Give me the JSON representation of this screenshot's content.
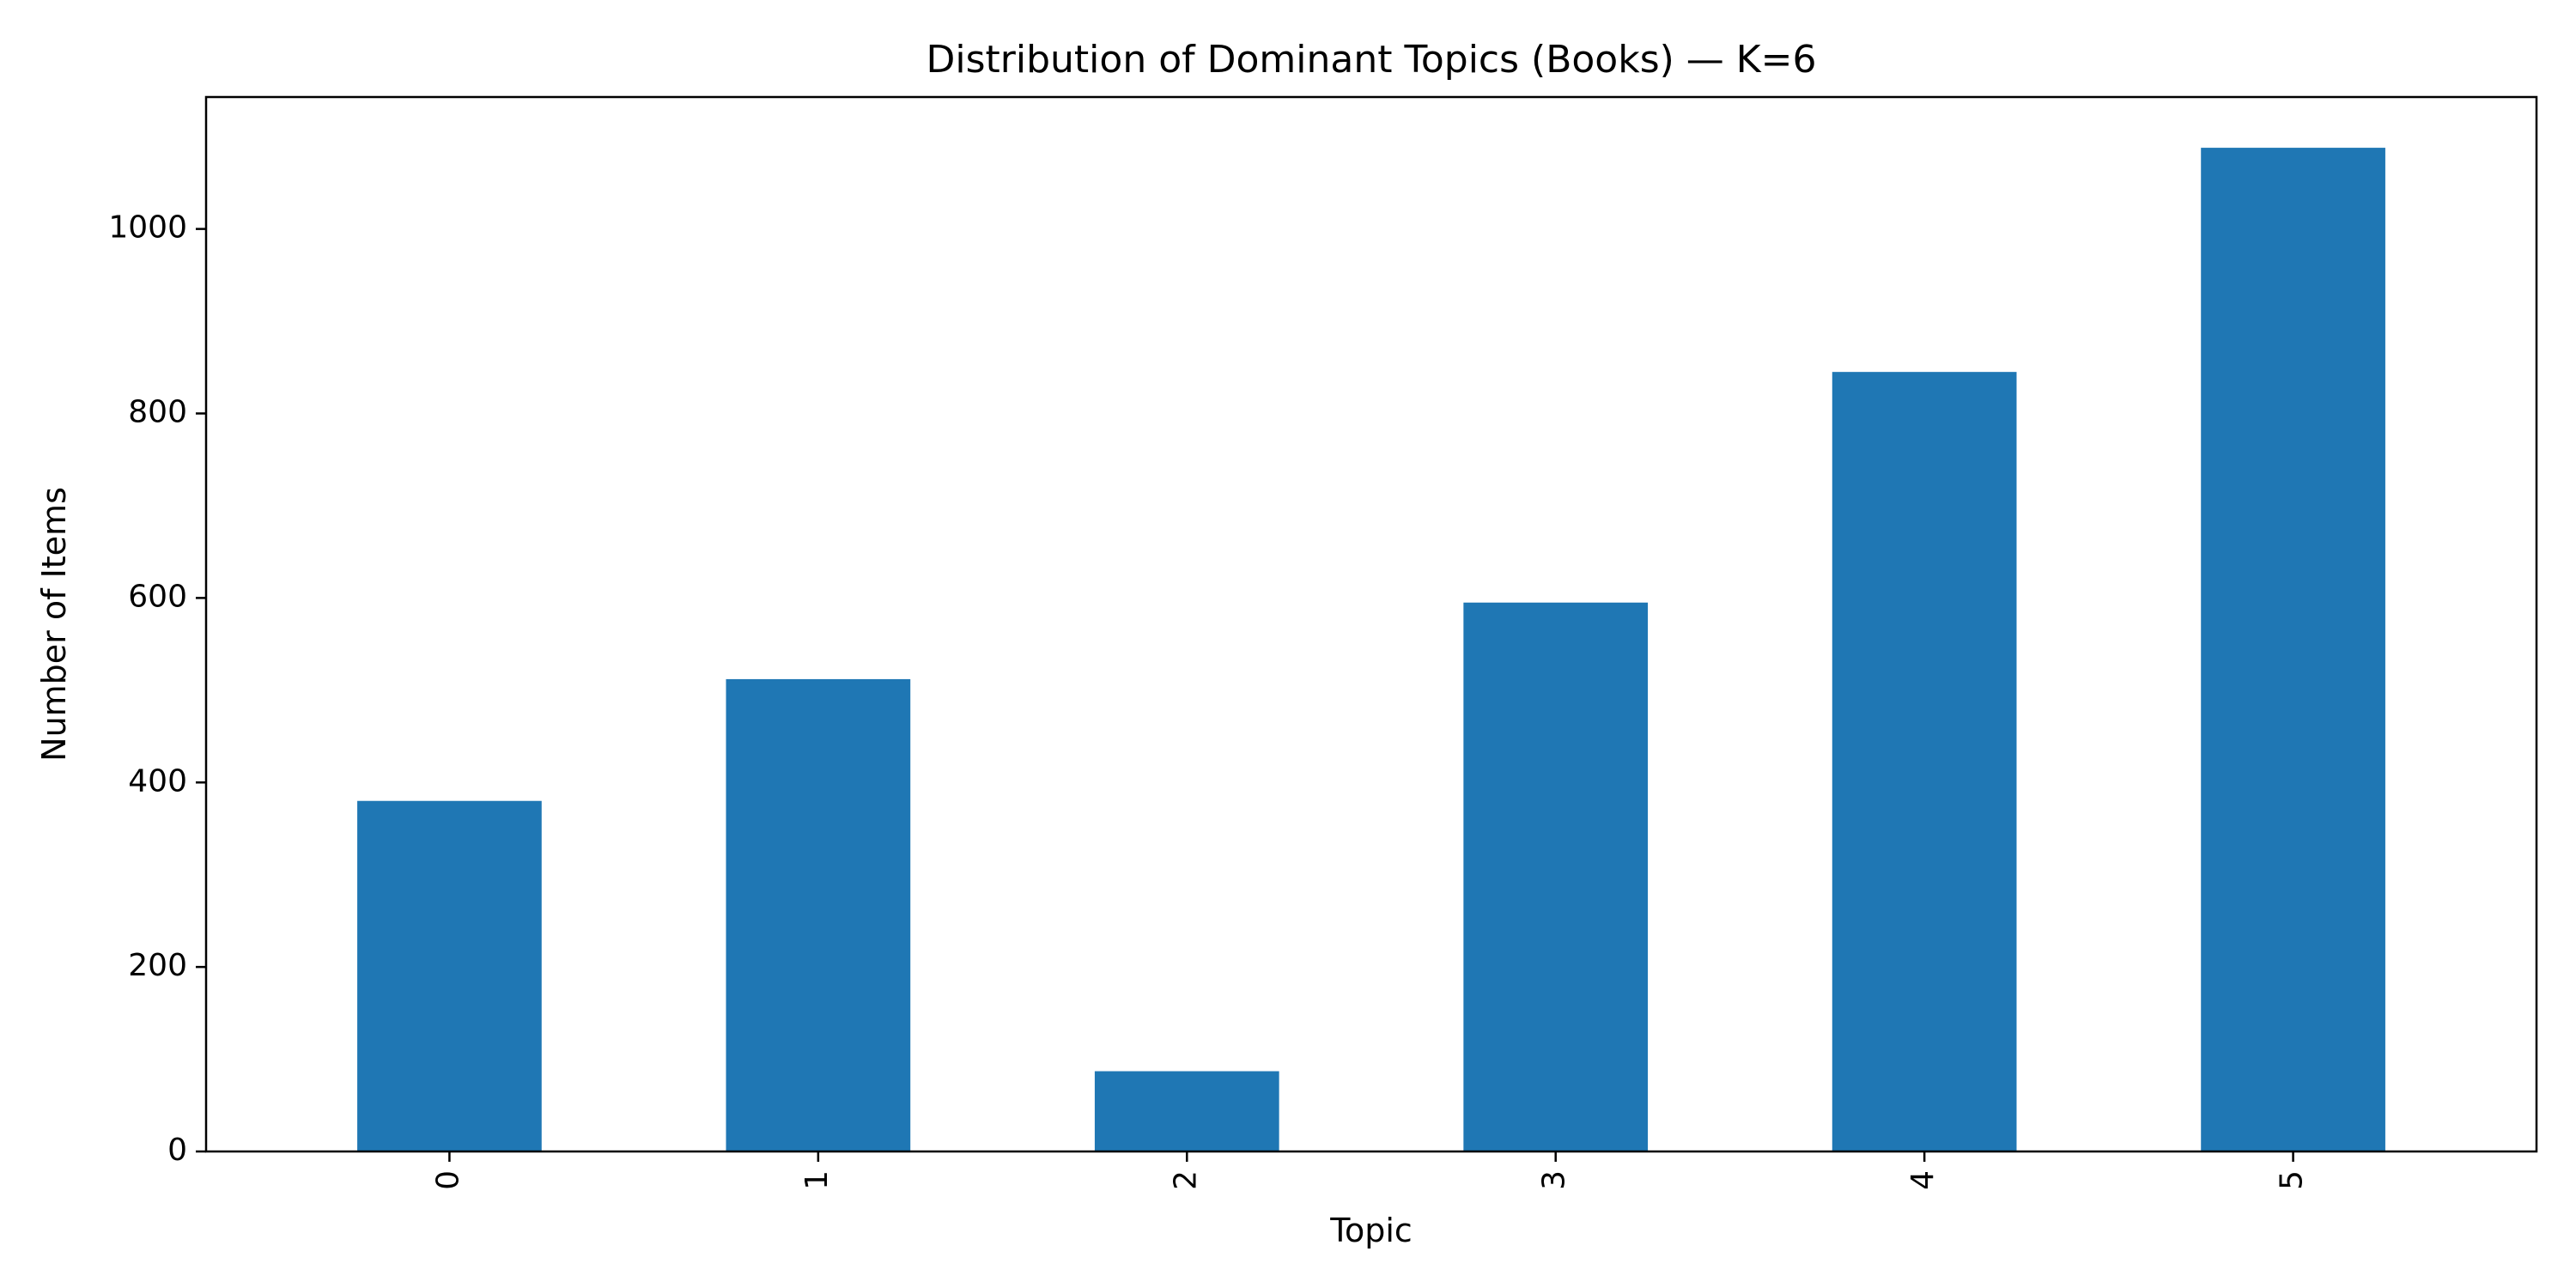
{
  "chart_data": {
    "type": "bar",
    "title": "Distribution of Dominant Topics (Books) — K=6",
    "xlabel": "Topic",
    "ylabel": "Number of Items",
    "categories": [
      "0",
      "1",
      "2",
      "3",
      "4",
      "5"
    ],
    "values": [
      380,
      512,
      87,
      595,
      845,
      1088
    ],
    "yticks": [
      0,
      200,
      400,
      600,
      800,
      1000
    ],
    "ylim": [
      0,
      1143
    ],
    "bar_color": "#1f77b4",
    "grid": false,
    "legend": "none",
    "x_tick_rotation": "vertical"
  }
}
